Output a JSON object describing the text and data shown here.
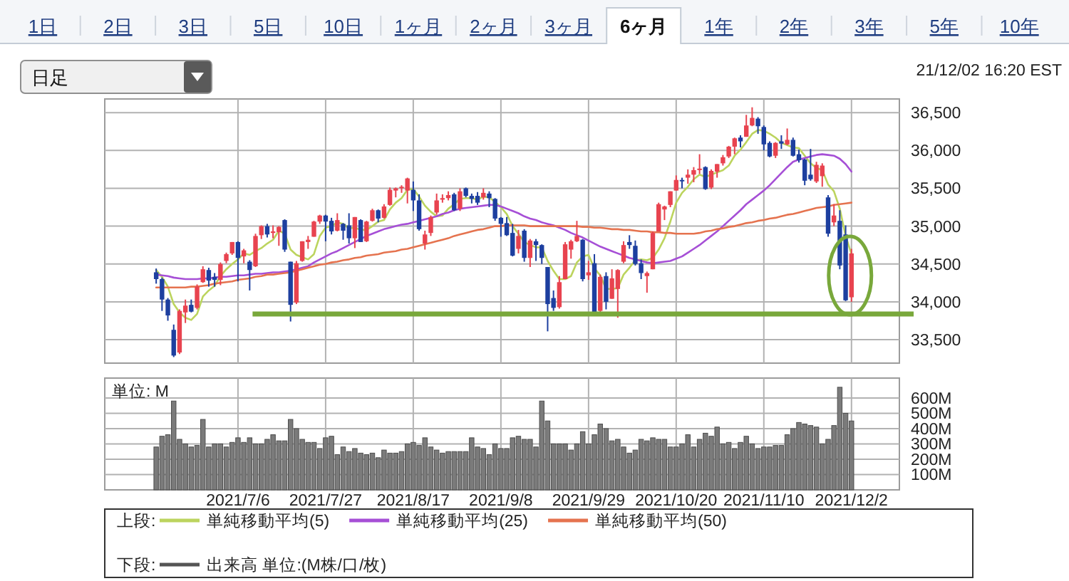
{
  "chart_data": [
    {
      "type": "candlestick",
      "categories": [
        null,
        null,
        null,
        null,
        null,
        null,
        null,
        null,
        null,
        null,
        null,
        null,
        null,
        null,
        "2021/7/6",
        null,
        null,
        null,
        null,
        null,
        null,
        null,
        null,
        null,
        null,
        null,
        null,
        null,
        null,
        "2021/7/27",
        null,
        null,
        null,
        null,
        null,
        null,
        null,
        null,
        null,
        null,
        null,
        null,
        null,
        null,
        "2021/8/17",
        null,
        null,
        null,
        null,
        null,
        null,
        null,
        null,
        null,
        null,
        null,
        null,
        null,
        null,
        "2021/9/8",
        null,
        null,
        null,
        null,
        null,
        null,
        null,
        null,
        null,
        null,
        null,
        null,
        null,
        null,
        "2021/9/29",
        null,
        null,
        null,
        null,
        null,
        null,
        null,
        null,
        null,
        null,
        null,
        null,
        null,
        null,
        "2021/10/20",
        null,
        null,
        null,
        null,
        null,
        null,
        null,
        null,
        null,
        null,
        null,
        null,
        null,
        null,
        "2021/11/10",
        null,
        null,
        null,
        null,
        null,
        null,
        null,
        null,
        null,
        null,
        null,
        null,
        null,
        null,
        "2021/12/2"
      ],
      "ohlc": [
        [
          34390,
          34440,
          34240,
          34300
        ],
        [
          34300,
          34320,
          33880,
          34030
        ],
        [
          34030,
          34050,
          33750,
          33820
        ],
        [
          33630,
          33700,
          33270,
          33290
        ],
        [
          33330,
          33900,
          33310,
          33880
        ],
        [
          33860,
          34030,
          33720,
          33950
        ],
        [
          33960,
          34030,
          33860,
          33870
        ],
        [
          33920,
          34230,
          33900,
          34200
        ],
        [
          34260,
          34470,
          34250,
          34430
        ],
        [
          34420,
          34450,
          34200,
          34280
        ],
        [
          34330,
          34380,
          34200,
          34290
        ],
        [
          34290,
          34520,
          34220,
          34500
        ],
        [
          34540,
          34650,
          34510,
          34630
        ],
        [
          34640,
          34790,
          34620,
          34790
        ],
        [
          34790,
          34800,
          34270,
          34580
        ],
        [
          34600,
          34700,
          34510,
          34680
        ],
        [
          34530,
          34550,
          34150,
          34420
        ],
        [
          34470,
          34900,
          34460,
          34870
        ],
        [
          34880,
          35010,
          34830,
          35000
        ],
        [
          35000,
          35030,
          34850,
          34890
        ],
        [
          34910,
          35010,
          34840,
          34930
        ],
        [
          34920,
          35000,
          34740,
          34990
        ],
        [
          35080,
          35090,
          34660,
          34690
        ],
        [
          34530,
          34530,
          33740,
          33960
        ],
        [
          33990,
          34540,
          33970,
          34510
        ],
        [
          34540,
          34800,
          34530,
          34800
        ],
        [
          34790,
          34870,
          34700,
          34820
        ],
        [
          34860,
          35070,
          34860,
          35060
        ],
        [
          35060,
          35150,
          35030,
          35140
        ],
        [
          35140,
          35150,
          34800,
          35060
        ],
        [
          35070,
          35110,
          34890,
          34930
        ],
        [
          34940,
          35170,
          34930,
          35080
        ],
        [
          35030,
          35040,
          34820,
          34940
        ],
        [
          35010,
          35170,
          34770,
          34840
        ],
        [
          34840,
          35120,
          34710,
          35120
        ],
        [
          35080,
          35090,
          34790,
          34790
        ],
        [
          34800,
          35070,
          34790,
          35060
        ],
        [
          35070,
          35230,
          35060,
          35210
        ],
        [
          35210,
          35220,
          35050,
          35100
        ],
        [
          35110,
          35290,
          35100,
          35260
        ],
        [
          35280,
          35510,
          35270,
          35480
        ],
        [
          35470,
          35510,
          35380,
          35500
        ],
        [
          35510,
          35540,
          35440,
          35520
        ],
        [
          35470,
          35640,
          35300,
          35630
        ],
        [
          35480,
          35590,
          35200,
          35340
        ],
        [
          35340,
          35420,
          34940,
          34960
        ],
        [
          34770,
          34940,
          34690,
          34890
        ],
        [
          34910,
          35140,
          34870,
          35120
        ],
        [
          35180,
          35430,
          35150,
          35340
        ],
        [
          35350,
          35420,
          35310,
          35370
        ],
        [
          35370,
          35460,
          35340,
          35410
        ],
        [
          35420,
          35440,
          35200,
          35210
        ],
        [
          35230,
          35500,
          35200,
          35460
        ],
        [
          35500,
          35510,
          35380,
          35400
        ],
        [
          35400,
          35430,
          35300,
          35360
        ],
        [
          35400,
          35450,
          35280,
          35310
        ],
        [
          35380,
          35500,
          35350,
          35440
        ],
        [
          35430,
          35460,
          35250,
          35370
        ],
        [
          35360,
          35370,
          35070,
          35100
        ],
        [
          35110,
          35120,
          34860,
          35030
        ],
        [
          35040,
          35120,
          34870,
          34880
        ],
        [
          34910,
          35030,
          34600,
          34610
        ],
        [
          34700,
          34950,
          34640,
          34870
        ],
        [
          34940,
          34960,
          34530,
          34580
        ],
        [
          34580,
          34830,
          34460,
          34810
        ],
        [
          34800,
          34830,
          34540,
          34750
        ],
        [
          34750,
          34760,
          34500,
          34580
        ],
        [
          34460,
          34460,
          33610,
          33970
        ],
        [
          34050,
          34150,
          33880,
          33920
        ],
        [
          33930,
          34340,
          33910,
          34260
        ],
        [
          34300,
          34790,
          34300,
          34760
        ],
        [
          34690,
          34820,
          34570,
          34800
        ],
        [
          34800,
          35070,
          34790,
          34870
        ],
        [
          34820,
          34830,
          34270,
          34300
        ],
        [
          34350,
          34540,
          34290,
          34390
        ],
        [
          34510,
          34630,
          33820,
          33840
        ],
        [
          33880,
          34360,
          33830,
          34330
        ],
        [
          34340,
          34390,
          33900,
          34000
        ],
        [
          34040,
          34430,
          34040,
          34310
        ],
        [
          34170,
          34430,
          33790,
          34420
        ],
        [
          34530,
          34800,
          34510,
          34750
        ],
        [
          34790,
          34880,
          34700,
          34750
        ],
        [
          34740,
          34810,
          34480,
          34500
        ],
        [
          34510,
          34560,
          34300,
          34380
        ],
        [
          34340,
          34400,
          34120,
          34380
        ],
        [
          34430,
          34930,
          34430,
          34910
        ],
        [
          34930,
          35310,
          34930,
          35290
        ],
        [
          35220,
          35270,
          35080,
          35260
        ],
        [
          35280,
          35460,
          35250,
          35460
        ],
        [
          35470,
          35670,
          35470,
          35610
        ],
        [
          35610,
          35640,
          35500,
          35600
        ],
        [
          35640,
          35750,
          35560,
          35680
        ],
        [
          35680,
          35780,
          35580,
          35740
        ],
        [
          35740,
          35950,
          35690,
          35760
        ],
        [
          35780,
          35790,
          35480,
          35490
        ],
        [
          35510,
          35750,
          35490,
          35730
        ],
        [
          35720,
          35820,
          35640,
          35820
        ],
        [
          35830,
          35940,
          35800,
          35910
        ],
        [
          35920,
          36060,
          35900,
          36050
        ],
        [
          36050,
          36170,
          35950,
          36160
        ],
        [
          36170,
          36200,
          36040,
          36120
        ],
        [
          36180,
          36470,
          36180,
          36330
        ],
        [
          36330,
          36570,
          36320,
          36430
        ],
        [
          36420,
          36440,
          36220,
          36320
        ],
        [
          36310,
          36330,
          36000,
          36080
        ],
        [
          36100,
          36120,
          35910,
          35920
        ],
        [
          35930,
          36110,
          35900,
          36100
        ],
        [
          36120,
          36200,
          36020,
          36090
        ],
        [
          36080,
          36290,
          36070,
          36140
        ],
        [
          36140,
          36170,
          35920,
          35930
        ],
        [
          35950,
          36010,
          35840,
          35870
        ],
        [
          35880,
          35890,
          35540,
          35600
        ],
        [
          35680,
          36020,
          35600,
          35620
        ],
        [
          35590,
          35850,
          35570,
          35810
        ],
        [
          35660,
          35830,
          35520,
          35800
        ],
        [
          35380,
          35410,
          34860,
          34900
        ],
        [
          35050,
          35290,
          35000,
          35140
        ],
        [
          35070,
          35210,
          34430,
          34480
        ],
        [
          34890,
          35010,
          34010,
          34020
        ],
        [
          34060,
          34700,
          34000,
          34640
        ]
      ],
      "colors": [
        "#1d3f9f",
        "#1d3f9f",
        "#1d3f9f",
        "#1d3f9f",
        "#e8434f",
        "#e8434f",
        "#1d3f9f",
        "#e8434f",
        "#e8434f",
        "#1d3f9f",
        "#1d3f9f",
        "#e8434f",
        "#e8434f",
        "#e8434f",
        "#1d3f9f",
        "#e8434f",
        "#1d3f9f",
        "#e8434f",
        "#e8434f",
        "#1d3f9f",
        "#e8434f",
        "#e8434f",
        "#1d3f9f",
        "#1d3f9f",
        "#e8434f",
        "#e8434f",
        "#e8434f",
        "#e8434f",
        "#e8434f",
        "#1d3f9f",
        "#1d3f9f",
        "#e8434f",
        "#1d3f9f",
        "#1d3f9f",
        "#e8434f",
        "#1d3f9f",
        "#e8434f",
        "#e8434f",
        "#1d3f9f",
        "#e8434f",
        "#e8434f",
        "#e8434f",
        "#e8434f",
        "#e8434f",
        "#1d3f9f",
        "#1d3f9f",
        "#e8434f",
        "#e8434f",
        "#e8434f",
        "#e8434f",
        "#e8434f",
        "#1d3f9f",
        "#e8434f",
        "#1d3f9f",
        "#1d3f9f",
        "#1d3f9f",
        "#e8434f",
        "#1d3f9f",
        "#1d3f9f",
        "#1d3f9f",
        "#1d3f9f",
        "#1d3f9f",
        "#e8434f",
        "#1d3f9f",
        "#e8434f",
        "#1d3f9f",
        "#1d3f9f",
        "#1d3f9f",
        "#1d3f9f",
        "#e8434f",
        "#e8434f",
        "#e8434f",
        "#e8434f",
        "#1d3f9f",
        "#e8434f",
        "#1d3f9f",
        "#e8434f",
        "#1d3f9f",
        "#e8434f",
        "#e8434f",
        "#e8434f",
        "#1d3f9f",
        "#1d3f9f",
        "#1d3f9f",
        "#e8434f",
        "#e8434f",
        "#e8434f",
        "#e8434f",
        "#e8434f",
        "#e8434f",
        "#1d3f9f",
        "#e8434f",
        "#e8434f",
        "#e8434f",
        "#1d3f9f",
        "#e8434f",
        "#e8434f",
        "#e8434f",
        "#e8434f",
        "#e8434f",
        "#1d3f9f",
        "#e8434f",
        "#e8434f",
        "#1d3f9f",
        "#1d3f9f",
        "#1d3f9f",
        "#e8434f",
        "#1d3f9f",
        "#e8434f",
        "#1d3f9f",
        "#1d3f9f",
        "#1d3f9f",
        "#1d3f9f",
        "#e8434f",
        "#e8434f",
        "#1d3f9f",
        "#e8434f",
        "#1d3f9f",
        "#1d3f9f",
        "#e8434f"
      ],
      "series": [
        {
          "name": "単純移動平均(5)",
          "type": "line",
          "color": "#bcd45e",
          "values": [
            34420,
            34330,
            34200,
            33970,
            33860,
            33790,
            33760,
            33840,
            34070,
            34150,
            34210,
            34340,
            34430,
            34500,
            34560,
            34640,
            34620,
            34670,
            34710,
            34770,
            34820,
            34940,
            34900,
            34690,
            34620,
            34590,
            34560,
            34630,
            34870,
            34980,
            35000,
            35050,
            35030,
            34970,
            34980,
            34950,
            34950,
            35000,
            35060,
            35080,
            35220,
            35310,
            35370,
            35480,
            35490,
            35390,
            35270,
            35190,
            35130,
            35140,
            35230,
            35290,
            35360,
            35370,
            35370,
            35350,
            35390,
            35380,
            35320,
            35250,
            35160,
            35000,
            34900,
            34790,
            34750,
            34720,
            34720,
            34540,
            34410,
            34300,
            34300,
            34340,
            34520,
            34600,
            34620,
            34440,
            34350,
            34170,
            34170,
            34180,
            34360,
            34450,
            34550,
            34560,
            34550,
            34580,
            34690,
            34840,
            35060,
            35310,
            35440,
            35520,
            35620,
            35680,
            35650,
            35680,
            35710,
            35740,
            35800,
            35930,
            36010,
            36110,
            36220,
            36270,
            36260,
            36220,
            36170,
            36100,
            36070,
            36040,
            36030,
            35930,
            35830,
            35770,
            35740,
            35550,
            35460,
            35230,
            34870,
            34630
          ]
        },
        {
          "name": "単純移動平均(25)",
          "type": "line",
          "color": "#a64fd6",
          "values": [
            34360,
            34350,
            34340,
            34320,
            34310,
            34300,
            34300,
            34300,
            34310,
            34310,
            34320,
            34330,
            34330,
            34340,
            34350,
            34350,
            34360,
            34370,
            34370,
            34380,
            34390,
            34390,
            34400,
            34410,
            34430,
            34450,
            34470,
            34520,
            34560,
            34600,
            34640,
            34670,
            34710,
            34750,
            34790,
            34830,
            34870,
            34900,
            34930,
            34960,
            34980,
            35000,
            35020,
            35030,
            35050,
            35070,
            35090,
            35110,
            35130,
            35160,
            35180,
            35210,
            35230,
            35240,
            35250,
            35260,
            35270,
            35280,
            35280,
            35260,
            35230,
            35200,
            35170,
            35130,
            35100,
            35080,
            35050,
            35030,
            35010,
            34980,
            34950,
            34910,
            34880,
            34850,
            34810,
            34770,
            34730,
            34700,
            34670,
            34640,
            34610,
            34580,
            34560,
            34540,
            34520,
            34510,
            34520,
            34530,
            34540,
            34570,
            34600,
            34650,
            34700,
            34750,
            34810,
            34870,
            34930,
            35000,
            35070,
            35140,
            35210,
            35290,
            35350,
            35410,
            35470,
            35540,
            35620,
            35700,
            35780,
            35850,
            35880,
            35900,
            35920,
            35940,
            35950,
            35940,
            35930,
            35890,
            35820,
            35720
          ]
        },
        {
          "name": "単純移動平均(50)",
          "type": "line",
          "color": "#e5734f",
          "values": [
            34190,
            34190,
            34190,
            34190,
            34190,
            34190,
            34200,
            34200,
            34210,
            34220,
            34240,
            34250,
            34260,
            34270,
            34290,
            34300,
            34310,
            34330,
            34340,
            34360,
            34360,
            34370,
            34380,
            34390,
            34410,
            34430,
            34450,
            34470,
            34490,
            34500,
            34520,
            34530,
            34550,
            34560,
            34580,
            34590,
            34610,
            34620,
            34630,
            34650,
            34660,
            34670,
            34690,
            34700,
            34720,
            34740,
            34760,
            34780,
            34800,
            34820,
            34840,
            34870,
            34890,
            34910,
            34930,
            34950,
            34960,
            34980,
            35000,
            35000,
            35010,
            35010,
            35010,
            35010,
            35000,
            35000,
            35000,
            35000,
            35000,
            35000,
            35000,
            35000,
            35000,
            34990,
            34990,
            34980,
            34980,
            34970,
            34960,
            34960,
            34950,
            34950,
            34940,
            34930,
            34930,
            34920,
            34920,
            34910,
            34910,
            34900,
            34900,
            34900,
            34900,
            34910,
            34930,
            34940,
            34960,
            34970,
            34990,
            35000,
            35020,
            35040,
            35050,
            35070,
            35080,
            35100,
            35110,
            35130,
            35150,
            35160,
            35180,
            35200,
            35220,
            35240,
            35250,
            35260,
            35280,
            35290,
            35300,
            35310
          ]
        }
      ],
      "ylim": [
        33190,
        36680
      ],
      "yticks": [
        {
          "value": 33500,
          "label": "33,500"
        },
        {
          "value": 34000,
          "label": "34,000"
        },
        {
          "value": 34500,
          "label": "34,500"
        },
        {
          "value": 35000,
          "label": "35,000"
        },
        {
          "value": 35500,
          "label": "35,500"
        },
        {
          "value": 36000,
          "label": "36,000"
        },
        {
          "value": 36500,
          "label": "36,500"
        }
      ],
      "ref_lines": [
        {
          "axis": "y",
          "value": 33840,
          "color": "#79a83b"
        }
      ],
      "grid": true,
      "tick_labels": "y",
      "legend": "bottom",
      "legend_title": "上段:",
      "annotations": [
        "1日",
        "2日",
        "3日",
        "5日",
        "10日",
        "1ヶ月",
        "2ヶ月",
        "3ヶ月",
        "6ヶ月",
        "1年",
        "2年",
        "3年",
        "5年",
        "10年",
        "日足",
        "21/12/02 16:20 EST"
      ]
    },
    {
      "type": "bar",
      "categories": [
        null,
        null,
        null,
        null,
        null,
        null,
        null,
        null,
        null,
        null,
        null,
        null,
        null,
        null,
        "2021/7/6",
        null,
        null,
        null,
        null,
        null,
        null,
        null,
        null,
        null,
        null,
        null,
        null,
        null,
        null,
        "2021/7/27",
        null,
        null,
        null,
        null,
        null,
        null,
        null,
        null,
        null,
        null,
        null,
        null,
        null,
        null,
        "2021/8/17",
        null,
        null,
        null,
        null,
        null,
        null,
        null,
        null,
        null,
        null,
        null,
        null,
        null,
        null,
        "2021/9/8",
        null,
        null,
        null,
        null,
        null,
        null,
        null,
        null,
        null,
        null,
        null,
        null,
        null,
        null,
        "2021/9/29",
        null,
        null,
        null,
        null,
        null,
        null,
        null,
        null,
        null,
        null,
        null,
        null,
        null,
        null,
        "2021/10/20",
        null,
        null,
        null,
        null,
        null,
        null,
        null,
        null,
        null,
        null,
        null,
        null,
        null,
        null,
        "2021/11/10",
        null,
        null,
        null,
        null,
        null,
        null,
        null,
        null,
        null,
        null,
        null,
        null,
        null,
        null,
        "2021/12/2"
      ],
      "series": [
        {
          "name": "出来高 単位:(M株/口/枚)",
          "color": "#7b7b7b",
          "values": [
            280,
            350,
            360,
            580,
            330,
            300,
            280,
            290,
            460,
            280,
            300,
            300,
            280,
            310,
            340,
            310,
            340,
            300,
            300,
            330,
            360,
            320,
            320,
            460,
            400,
            330,
            310,
            310,
            270,
            340,
            350,
            230,
            280,
            250,
            270,
            240,
            230,
            240,
            210,
            260,
            240,
            240,
            250,
            300,
            310,
            290,
            340,
            280,
            260,
            240,
            250,
            250,
            250,
            250,
            340,
            280,
            270,
            230,
            300,
            270,
            270,
            340,
            350,
            330,
            330,
            280,
            580,
            450,
            300,
            300,
            300,
            260,
            300,
            380,
            300,
            360,
            430,
            400,
            320,
            330,
            280,
            240,
            260,
            330,
            320,
            340,
            330,
            330,
            280,
            280,
            300,
            360,
            280,
            330,
            370,
            350,
            410,
            300,
            310,
            270,
            310,
            350,
            300,
            270,
            280,
            280,
            290,
            290,
            360,
            400,
            440,
            430,
            420,
            410,
            300,
            330,
            420,
            670,
            500,
            450
          ]
        }
      ],
      "ylim": [
        0,
        730
      ],
      "yticks": [
        {
          "value": 100,
          "label": "100M"
        },
        {
          "value": 200,
          "label": "200M"
        },
        {
          "value": 300,
          "label": "300M"
        },
        {
          "value": 400,
          "label": "400M"
        },
        {
          "value": 500,
          "label": "500M"
        },
        {
          "value": 600,
          "label": "600M"
        }
      ],
      "grid": true,
      "legend": "bottom",
      "legend_title": "下段:",
      "annotations": [
        "単位: M"
      ]
    }
  ]
}
